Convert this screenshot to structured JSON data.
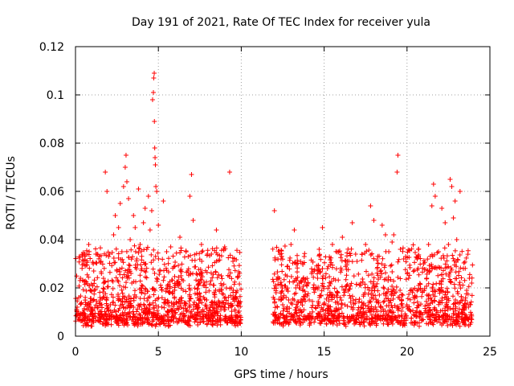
{
  "chart_data": {
    "type": "scatter",
    "title": "Day 191 of 2021, Rate Of TEC Index for receiver yula",
    "xlabel": "GPS time / hours",
    "ylabel": "ROTI / TECUs",
    "xlim": [
      0,
      25
    ],
    "ylim": [
      0,
      0.12
    ],
    "xticks": [
      0,
      5,
      10,
      15,
      20,
      25
    ],
    "xtick_labels": [
      "0",
      "5",
      "10",
      "15",
      "20",
      "25"
    ],
    "yticks": [
      0,
      0.02,
      0.04,
      0.06,
      0.08,
      0.1,
      0.12
    ],
    "ytick_labels": [
      "0",
      "0.02",
      "0.04",
      "0.06",
      "0.08",
      "0.1",
      "0.12"
    ],
    "grid": true,
    "marker": "+",
    "color": "#ff0000",
    "data_gaps_hours": [
      [
        10.0,
        11.9
      ]
    ],
    "series": [
      {
        "name": "ROTI",
        "points": [
          [
            0.1,
            0.012
          ],
          [
            0.2,
            0.016
          ],
          [
            0.3,
            0.024
          ],
          [
            0.4,
            0.009
          ],
          [
            0.5,
            0.03
          ],
          [
            0.6,
            0.014
          ],
          [
            0.8,
            0.038
          ],
          [
            0.9,
            0.019
          ],
          [
            1.0,
            0.011
          ],
          [
            1.1,
            0.027
          ],
          [
            1.3,
            0.034
          ],
          [
            1.5,
            0.015
          ],
          [
            1.7,
            0.022
          ],
          [
            1.8,
            0.068
          ],
          [
            1.9,
            0.06
          ],
          [
            2.0,
            0.033
          ],
          [
            2.1,
            0.013
          ],
          [
            2.3,
            0.042
          ],
          [
            2.4,
            0.05
          ],
          [
            2.5,
            0.027
          ],
          [
            2.6,
            0.045
          ],
          [
            2.7,
            0.055
          ],
          [
            2.8,
            0.035
          ],
          [
            2.9,
            0.062
          ],
          [
            3.0,
            0.07
          ],
          [
            3.05,
            0.075
          ],
          [
            3.1,
            0.064
          ],
          [
            3.2,
            0.057
          ],
          [
            3.3,
            0.04
          ],
          [
            3.4,
            0.022
          ],
          [
            3.5,
            0.05
          ],
          [
            3.6,
            0.045
          ],
          [
            3.7,
            0.032
          ],
          [
            3.8,
            0.061
          ],
          [
            3.9,
            0.038
          ],
          [
            4.0,
            0.028
          ],
          [
            4.1,
            0.047
          ],
          [
            4.2,
            0.053
          ],
          [
            4.3,
            0.036
          ],
          [
            4.4,
            0.058
          ],
          [
            4.5,
            0.044
          ],
          [
            4.6,
            0.052
          ],
          [
            4.65,
            0.098
          ],
          [
            4.7,
            0.101
          ],
          [
            4.72,
            0.107
          ],
          [
            4.75,
            0.109
          ],
          [
            4.76,
            0.089
          ],
          [
            4.78,
            0.078
          ],
          [
            4.8,
            0.074
          ],
          [
            4.82,
            0.071
          ],
          [
            4.85,
            0.062
          ],
          [
            4.9,
            0.06
          ],
          [
            5.0,
            0.046
          ],
          [
            5.1,
            0.027
          ],
          [
            5.3,
            0.056
          ],
          [
            5.5,
            0.035
          ],
          [
            5.7,
            0.018
          ],
          [
            6.0,
            0.029
          ],
          [
            6.3,
            0.041
          ],
          [
            6.5,
            0.023
          ],
          [
            6.8,
            0.033
          ],
          [
            6.9,
            0.058
          ],
          [
            7.0,
            0.067
          ],
          [
            7.1,
            0.048
          ],
          [
            7.3,
            0.026
          ],
          [
            7.6,
            0.038
          ],
          [
            7.9,
            0.015
          ],
          [
            8.2,
            0.034
          ],
          [
            8.5,
            0.044
          ],
          [
            8.8,
            0.025
          ],
          [
            9.0,
            0.037
          ],
          [
            9.3,
            0.068
          ],
          [
            9.5,
            0.031
          ],
          [
            9.7,
            0.018
          ],
          [
            9.9,
            0.026
          ],
          [
            12.0,
            0.052
          ],
          [
            12.1,
            0.018
          ],
          [
            12.3,
            0.024
          ],
          [
            12.5,
            0.013
          ],
          [
            12.8,
            0.029
          ],
          [
            13.0,
            0.038
          ],
          [
            13.2,
            0.044
          ],
          [
            13.5,
            0.02
          ],
          [
            13.8,
            0.033
          ],
          [
            14.1,
            0.015
          ],
          [
            14.4,
            0.027
          ],
          [
            14.7,
            0.036
          ],
          [
            14.9,
            0.045
          ],
          [
            15.2,
            0.028
          ],
          [
            15.5,
            0.038
          ],
          [
            15.8,
            0.018
          ],
          [
            16.1,
            0.041
          ],
          [
            16.4,
            0.031
          ],
          [
            16.7,
            0.047
          ],
          [
            16.9,
            0.034
          ],
          [
            17.2,
            0.022
          ],
          [
            17.5,
            0.038
          ],
          [
            17.8,
            0.054
          ],
          [
            18.0,
            0.048
          ],
          [
            18.2,
            0.028
          ],
          [
            18.5,
            0.046
          ],
          [
            18.7,
            0.042
          ],
          [
            18.9,
            0.035
          ],
          [
            19.1,
            0.039
          ],
          [
            19.2,
            0.042
          ],
          [
            19.4,
            0.068
          ],
          [
            19.45,
            0.075
          ],
          [
            19.6,
            0.036
          ],
          [
            19.8,
            0.032
          ],
          [
            20.1,
            0.024
          ],
          [
            20.4,
            0.016
          ],
          [
            20.7,
            0.021
          ],
          [
            21.0,
            0.03
          ],
          [
            21.3,
            0.038
          ],
          [
            21.5,
            0.054
          ],
          [
            21.6,
            0.063
          ],
          [
            21.7,
            0.058
          ],
          [
            21.9,
            0.035
          ],
          [
            22.1,
            0.053
          ],
          [
            22.3,
            0.047
          ],
          [
            22.5,
            0.038
          ],
          [
            22.6,
            0.065
          ],
          [
            22.7,
            0.062
          ],
          [
            22.8,
            0.049
          ],
          [
            22.9,
            0.056
          ],
          [
            23.0,
            0.04
          ],
          [
            23.2,
            0.06
          ],
          [
            23.4,
            0.028
          ],
          [
            23.6,
            0.019
          ],
          [
            23.8,
            0.013
          ],
          [
            23.9,
            0.022
          ]
        ]
      }
    ]
  }
}
